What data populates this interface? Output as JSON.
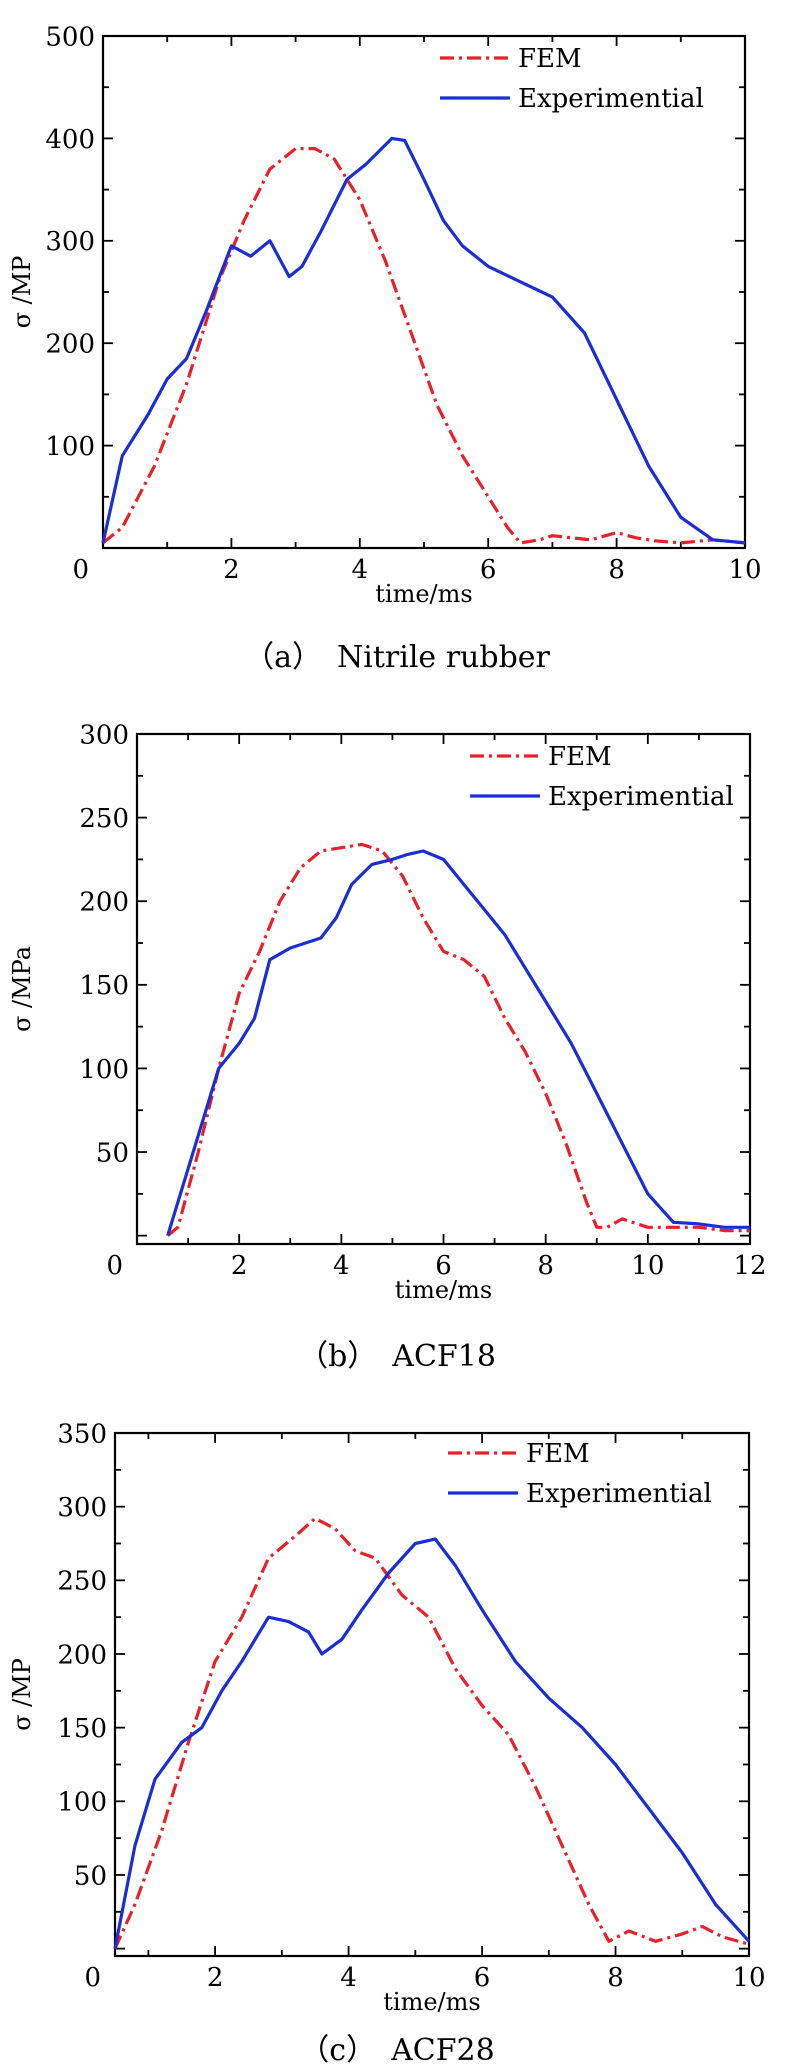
{
  "chart_data": [
    {
      "type": "line",
      "caption": "（a）　Nitrile rubber",
      "xlabel": "time/ms",
      "ylabel": "σ /MP",
      "xlim": [
        0,
        10
      ],
      "ylim": [
        0,
        500
      ],
      "xticks": [
        0,
        2,
        4,
        6,
        8,
        10
      ],
      "yticks": [
        100,
        200,
        300,
        400,
        500
      ],
      "origin_label": "0",
      "legend": "top-right",
      "series": [
        {
          "name": "FEM",
          "style": "dash-dot",
          "color": "#e8202a",
          "x": [
            0,
            0.3,
            0.8,
            1.3,
            1.8,
            2.2,
            2.6,
            3.0,
            3.3,
            3.6,
            4.0,
            4.4,
            4.8,
            5.2,
            5.6,
            6.0,
            6.3,
            6.5,
            6.8,
            7.0,
            7.3,
            7.6,
            8.0,
            8.3,
            8.6,
            9.0,
            9.5,
            10
          ],
          "y": [
            5,
            20,
            80,
            160,
            260,
            320,
            370,
            390,
            390,
            380,
            340,
            280,
            210,
            140,
            90,
            50,
            20,
            5,
            8,
            12,
            10,
            8,
            15,
            10,
            7,
            5,
            8,
            5
          ]
        },
        {
          "name": "Experimential",
          "style": "solid",
          "color": "#1b2ed6",
          "x": [
            0,
            0.3,
            0.7,
            1.0,
            1.3,
            1.6,
            2.0,
            2.3,
            2.6,
            2.9,
            3.1,
            3.4,
            3.8,
            4.1,
            4.5,
            4.7,
            5.0,
            5.3,
            5.6,
            6.0,
            6.5,
            7.0,
            7.5,
            8.0,
            8.5,
            9.0,
            9.5,
            10
          ],
          "y": [
            5,
            90,
            130,
            165,
            185,
            230,
            295,
            285,
            300,
            265,
            275,
            310,
            360,
            375,
            400,
            398,
            360,
            320,
            295,
            275,
            260,
            245,
            210,
            145,
            80,
            30,
            8,
            5
          ]
        }
      ]
    },
    {
      "type": "line",
      "caption": "（b）　ACF18",
      "xlabel": "time/ms",
      "ylabel": "σ /MPa",
      "xlim": [
        0,
        12
      ],
      "ylim": [
        -5,
        300
      ],
      "xticks": [
        0,
        2,
        4,
        6,
        8,
        10,
        12
      ],
      "yticks": [
        50,
        100,
        150,
        200,
        250,
        300
      ],
      "origin_label": "0",
      "legend": "top-right",
      "series": [
        {
          "name": "FEM",
          "style": "dash-dot",
          "color": "#e8202a",
          "x": [
            0.6,
            0.8,
            1.2,
            1.6,
            2.0,
            2.4,
            2.8,
            3.2,
            3.6,
            4.0,
            4.4,
            4.8,
            5.2,
            5.6,
            6.0,
            6.4,
            6.8,
            7.2,
            7.6,
            8.0,
            8.4,
            8.8,
            9.0,
            9.2,
            9.5,
            10.0,
            10.5,
            11.0,
            11.5,
            12.0
          ],
          "y": [
            0,
            5,
            50,
            100,
            145,
            170,
            200,
            220,
            230,
            232,
            234,
            230,
            215,
            190,
            170,
            165,
            155,
            130,
            110,
            85,
            55,
            20,
            5,
            5,
            10,
            5,
            5,
            5,
            3,
            3
          ]
        },
        {
          "name": "Experimential",
          "style": "solid",
          "color": "#1b2ed6",
          "x": [
            0.6,
            0.8,
            1.2,
            1.6,
            2.0,
            2.3,
            2.6,
            3.0,
            3.3,
            3.6,
            3.9,
            4.2,
            4.6,
            5.0,
            5.3,
            5.6,
            6.0,
            6.4,
            6.8,
            7.2,
            7.6,
            8.0,
            8.5,
            9.0,
            9.5,
            10.0,
            10.5,
            11.0,
            11.5,
            12.0
          ],
          "y": [
            0,
            20,
            60,
            100,
            115,
            130,
            165,
            172,
            175,
            178,
            190,
            210,
            222,
            225,
            228,
            230,
            225,
            210,
            195,
            180,
            160,
            140,
            115,
            85,
            55,
            25,
            8,
            7,
            5,
            5
          ]
        }
      ]
    },
    {
      "type": "line",
      "caption": "（c）　ACF28",
      "xlabel": "time/ms",
      "ylabel": "σ /MP",
      "xlim": [
        0.5,
        10
      ],
      "ylim": [
        -5,
        350
      ],
      "xticks": [
        0,
        2,
        4,
        6,
        8,
        10
      ],
      "yticks": [
        50,
        100,
        150,
        200,
        250,
        300,
        350
      ],
      "origin_label": "0",
      "legend": "top-right",
      "series": [
        {
          "name": "FEM",
          "style": "dash-dot",
          "color": "#e8202a",
          "x": [
            0.5,
            0.8,
            1.2,
            1.6,
            2.0,
            2.4,
            2.8,
            3.2,
            3.5,
            3.8,
            4.1,
            4.4,
            4.8,
            5.2,
            5.6,
            6.0,
            6.4,
            6.8,
            7.2,
            7.6,
            7.9,
            8.2,
            8.6,
            9.0,
            9.3,
            9.6,
            10.0
          ],
          "y": [
            0,
            30,
            80,
            140,
            195,
            225,
            265,
            280,
            292,
            285,
            270,
            265,
            240,
            225,
            190,
            165,
            145,
            110,
            70,
            30,
            5,
            12,
            5,
            10,
            15,
            8,
            3
          ]
        },
        {
          "name": "Experimential",
          "style": "solid",
          "color": "#1b2ed6",
          "x": [
            0.5,
            0.8,
            1.1,
            1.5,
            1.8,
            2.1,
            2.4,
            2.8,
            3.1,
            3.4,
            3.6,
            3.9,
            4.2,
            4.6,
            5.0,
            5.3,
            5.6,
            6.0,
            6.5,
            7.0,
            7.5,
            8.0,
            8.5,
            9.0,
            9.5,
            10.0
          ],
          "y": [
            0,
            70,
            115,
            140,
            150,
            175,
            195,
            225,
            222,
            215,
            200,
            210,
            230,
            255,
            275,
            278,
            260,
            230,
            195,
            170,
            150,
            125,
            95,
            65,
            30,
            5
          ]
        }
      ]
    }
  ]
}
